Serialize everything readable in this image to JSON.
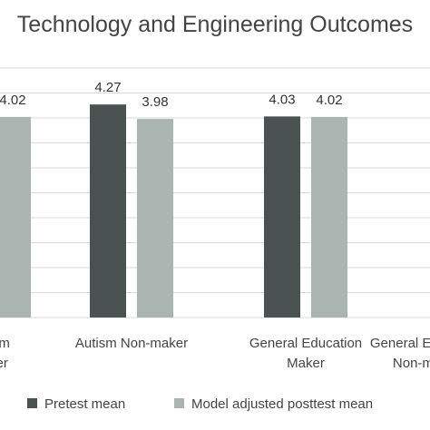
{
  "chart_data": {
    "type": "bar",
    "title": "Technology and Engineering Outcomes",
    "xlabel": "",
    "ylabel": "",
    "ylim": [
      0,
      5
    ],
    "grid": true,
    "legend_position": "bottom",
    "categories": [
      [
        "Autism",
        "Maker"
      ],
      [
        "Autism Non-maker"
      ],
      [
        "General Education",
        "Maker"
      ],
      [
        "General Education",
        "Non-maker"
      ]
    ],
    "series": [
      {
        "name": "Pretest mean",
        "color": "#4a5352",
        "values": [
          null,
          4.27,
          4.03,
          null
        ]
      },
      {
        "name": "Model adjusted posttest mean",
        "color": "#aab5b2",
        "values": [
          4.02,
          3.98,
          4.02,
          null
        ]
      }
    ],
    "data_labels": [
      [
        null,
        "4.27",
        "4.03",
        null
      ],
      [
        "4.02",
        "3.98",
        "4.02",
        null
      ]
    ]
  }
}
